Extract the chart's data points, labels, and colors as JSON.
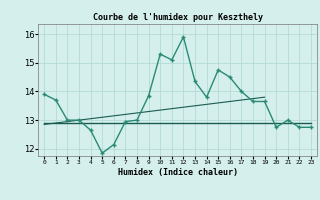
{
  "title": "Courbe de l'humidex pour Keszthely",
  "xlabel": "Humidex (Indice chaleur)",
  "x": [
    0,
    1,
    2,
    3,
    4,
    5,
    6,
    7,
    8,
    9,
    10,
    11,
    12,
    13,
    14,
    15,
    16,
    17,
    18,
    19,
    20,
    21,
    22,
    23
  ],
  "y_curve": [
    13.9,
    13.7,
    13.0,
    13.0,
    12.65,
    11.85,
    12.15,
    12.95,
    13.0,
    13.85,
    15.3,
    15.1,
    15.9,
    14.35,
    13.8,
    14.75,
    14.5,
    14.0,
    13.65,
    13.65,
    12.75,
    13.0,
    12.75,
    12.75
  ],
  "y_trend": [
    12.85,
    12.9,
    12.95,
    13.0,
    13.05,
    13.1,
    13.15,
    13.2,
    13.25,
    13.3,
    13.35,
    13.4,
    13.45,
    13.5,
    13.55,
    13.6,
    13.65,
    13.7,
    13.75,
    13.8,
    null,
    null,
    null,
    null
  ],
  "y_flat": [
    12.9,
    12.9,
    12.9,
    12.9,
    12.9,
    12.9,
    12.9,
    12.9,
    12.9,
    12.9,
    12.9,
    12.9,
    12.9,
    12.9,
    12.9,
    12.9,
    12.9,
    12.9,
    12.9,
    12.9,
    12.9,
    12.9,
    12.9,
    12.9
  ],
  "line_color": "#2a8a76",
  "trend_color": "#1a5c52",
  "flat_color": "#1a5c52",
  "bg_color": "#d4efec",
  "grid_color": "#aed8d3",
  "ylim": [
    11.75,
    16.35
  ],
  "yticks": [
    12,
    13,
    14,
    15,
    16
  ],
  "xtick_labels": [
    "0",
    "1",
    "2",
    "3",
    "4",
    "5",
    "6",
    "7",
    "8",
    "9",
    "10",
    "11",
    "12",
    "13",
    "14",
    "15",
    "16",
    "17",
    "18",
    "19",
    "20",
    "21",
    "22",
    "23"
  ]
}
